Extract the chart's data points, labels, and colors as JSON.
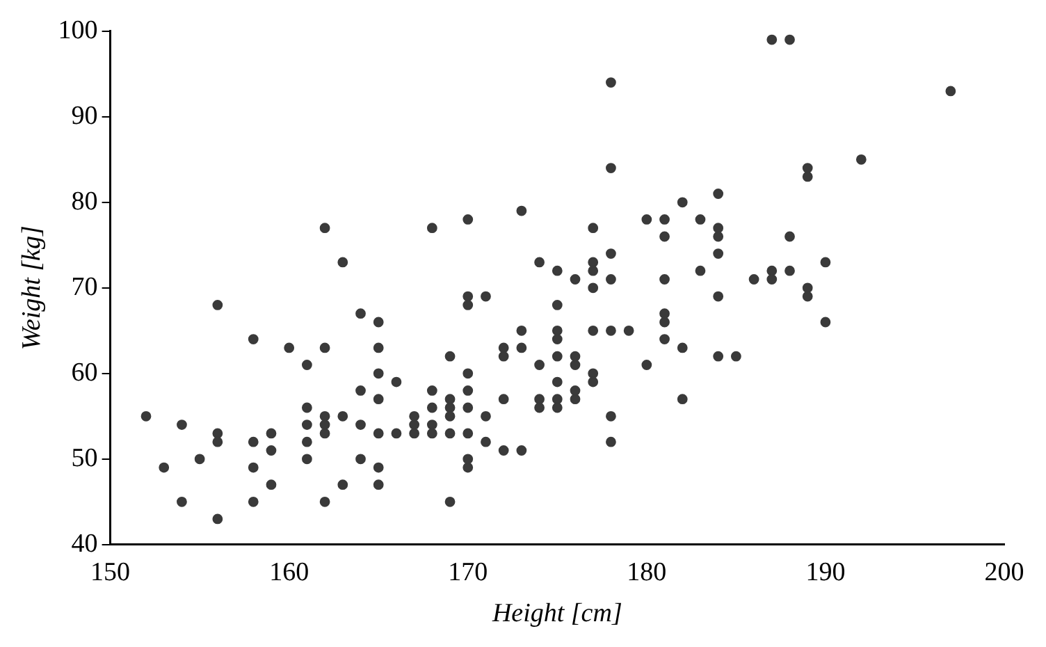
{
  "chart_data": {
    "type": "scatter",
    "xlabel": "Height [cm]",
    "ylabel": "Weight [kg]",
    "color": "#3a3a3a",
    "marker": "circle",
    "grid": false,
    "legend": false,
    "x": [
      152,
      153,
      154,
      154,
      155,
      156,
      156,
      156,
      156,
      158,
      158,
      158,
      158,
      159,
      159,
      159,
      160,
      161,
      161,
      161,
      161,
      161,
      162,
      162,
      162,
      162,
      162,
      162,
      163,
      163,
      163,
      164,
      164,
      164,
      164,
      165,
      165,
      165,
      165,
      165,
      165,
      165,
      166,
      166,
      167,
      167,
      167,
      168,
      168,
      168,
      168,
      168,
      169,
      169,
      169,
      169,
      169,
      169,
      170,
      170,
      170,
      170,
      170,
      170,
      170,
      170,
      170,
      171,
      171,
      171,
      172,
      172,
      172,
      172,
      173,
      173,
      173,
      173,
      174,
      174,
      174,
      174,
      175,
      175,
      175,
      175,
      175,
      175,
      175,
      175,
      176,
      176,
      176,
      176,
      176,
      177,
      177,
      177,
      177,
      177,
      177,
      177,
      178,
      178,
      178,
      178,
      178,
      178,
      178,
      179,
      180,
      180,
      181,
      181,
      181,
      181,
      181,
      181,
      182,
      182,
      182,
      183,
      183,
      184,
      184,
      184,
      184,
      184,
      184,
      185,
      186,
      187,
      187,
      187,
      188,
      188,
      188,
      189,
      189,
      189,
      189,
      190,
      190,
      192,
      197
    ],
    "values": [
      55,
      49,
      54,
      45,
      50,
      68,
      53,
      52,
      43,
      64,
      52,
      49,
      45,
      53,
      51,
      47,
      63,
      61,
      56,
      54,
      52,
      50,
      77,
      63,
      55,
      54,
      53,
      45,
      73,
      55,
      47,
      67,
      58,
      54,
      50,
      66,
      63,
      60,
      57,
      53,
      49,
      47,
      59,
      53,
      55,
      54,
      53,
      77,
      58,
      56,
      54,
      53,
      62,
      57,
      56,
      55,
      53,
      45,
      78,
      69,
      68,
      60,
      58,
      56,
      53,
      50,
      49,
      69,
      55,
      52,
      63,
      62,
      57,
      51,
      79,
      65,
      63,
      51,
      73,
      61,
      57,
      56,
      72,
      68,
      65,
      64,
      62,
      59,
      57,
      56,
      71,
      62,
      61,
      58,
      57,
      77,
      73,
      72,
      70,
      65,
      60,
      59,
      94,
      84,
      74,
      71,
      65,
      55,
      52,
      65,
      78,
      61,
      78,
      76,
      71,
      67,
      66,
      64,
      80,
      63,
      57,
      78,
      72,
      81,
      77,
      76,
      74,
      69,
      62,
      62,
      71,
      99,
      72,
      71,
      99,
      76,
      72,
      84,
      83,
      70,
      69,
      73,
      66,
      85,
      93
    ],
    "xlim": [
      150,
      200
    ],
    "xticks": [
      150,
      160,
      170,
      180,
      190,
      200
    ],
    "ylim": [
      40,
      100
    ],
    "yticks": [
      40,
      50,
      60,
      70,
      80,
      90,
      100
    ]
  }
}
